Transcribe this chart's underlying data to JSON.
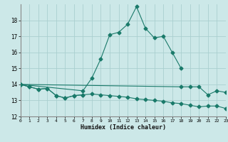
{
  "title": "",
  "xlabel": "Humidex (Indice chaleur)",
  "background_color": "#cce8e8",
  "grid_color": "#aacfcf",
  "line_color": "#1a7a6a",
  "x_values": [
    0,
    1,
    2,
    3,
    4,
    5,
    6,
    7,
    8,
    9,
    10,
    11,
    12,
    13,
    14,
    15,
    16,
    17,
    18,
    19,
    20,
    21,
    22,
    23
  ],
  "series1": [
    14.0,
    13.85,
    13.7,
    13.75,
    13.3,
    13.15,
    13.3,
    13.35
  ],
  "series1_x": [
    0,
    1,
    2,
    3,
    4,
    5,
    6,
    7
  ],
  "series2_x": [
    0,
    7,
    8,
    9,
    10,
    11,
    12,
    13,
    14,
    15,
    16,
    17,
    18
  ],
  "series2": [
    14.0,
    13.6,
    14.4,
    15.6,
    17.1,
    17.25,
    17.75,
    18.85,
    17.5,
    16.9,
    17.0,
    16.0,
    15.0
  ],
  "series3_x": [
    0,
    18,
    19,
    20,
    21,
    22,
    23
  ],
  "series3": [
    14.0,
    13.85,
    13.85,
    13.85,
    13.35,
    13.6,
    13.5
  ],
  "series4_x": [
    0,
    1,
    2,
    3,
    4,
    5,
    6,
    7,
    8,
    9,
    10,
    11,
    12,
    13,
    14,
    15,
    16,
    17,
    18,
    19,
    20,
    21,
    22,
    23
  ],
  "series4": [
    14.0,
    13.85,
    13.7,
    13.75,
    13.3,
    13.15,
    13.3,
    13.35,
    13.4,
    13.35,
    13.3,
    13.25,
    13.2,
    13.1,
    13.05,
    13.0,
    12.95,
    12.85,
    12.8,
    12.7,
    12.6,
    12.65,
    12.65,
    12.5
  ],
  "ylim": [
    12,
    19
  ],
  "xlim": [
    0,
    23
  ],
  "yticks": [
    12,
    13,
    14,
    15,
    16,
    17,
    18
  ],
  "xticks": [
    0,
    1,
    2,
    3,
    4,
    5,
    6,
    7,
    8,
    9,
    10,
    11,
    12,
    13,
    14,
    15,
    16,
    17,
    18,
    19,
    20,
    21,
    22,
    23
  ]
}
